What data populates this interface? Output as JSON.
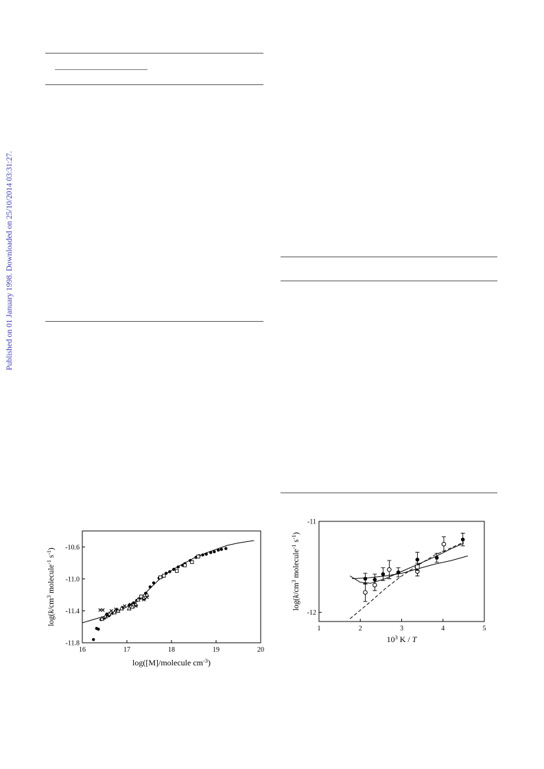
{
  "watermark": {
    "text": "Published on 01 January 1998. Downloaded on 25/10/2014 03:31:27.",
    "color": "#3b3bbf"
  },
  "chart_data": [
    {
      "type": "scatter",
      "title": "",
      "xlabel": "log([M]/molecule cm⁻³)",
      "ylabel": "log(k/cm³ molecule⁻¹ s⁻¹)",
      "xlim": [
        16,
        20
      ],
      "ylim": [
        -11.8,
        -10.4
      ],
      "xticks": [
        16,
        17,
        18,
        19,
        20
      ],
      "yticks": [
        -11.8,
        -11.4,
        -11.0,
        -10.6
      ],
      "ytick_labels": [
        "-11.8",
        "-11.4",
        "-11.0",
        "-10.6"
      ],
      "grid": false,
      "series": [
        {
          "marker": "filled-circle",
          "points": [
            [
              16.25,
              -11.76
            ],
            [
              16.32,
              -11.62
            ],
            [
              16.36,
              -11.63
            ],
            [
              16.42,
              -11.51
            ],
            [
              16.5,
              -11.49
            ],
            [
              16.55,
              -11.44
            ],
            [
              16.6,
              -11.46
            ],
            [
              16.68,
              -11.43
            ],
            [
              16.78,
              -11.39
            ],
            [
              16.9,
              -11.36
            ],
            [
              17.05,
              -11.33
            ],
            [
              17.15,
              -11.3
            ],
            [
              17.22,
              -11.27
            ],
            [
              17.3,
              -11.24
            ],
            [
              17.42,
              -11.18
            ],
            [
              17.52,
              -11.1
            ],
            [
              17.6,
              -11.05
            ],
            [
              17.72,
              -10.99
            ],
            [
              17.8,
              -10.97
            ],
            [
              17.88,
              -10.93
            ],
            [
              17.96,
              -10.91
            ],
            [
              18.05,
              -10.88
            ],
            [
              18.15,
              -10.85
            ],
            [
              18.25,
              -10.83
            ],
            [
              18.3,
              -10.81
            ],
            [
              18.42,
              -10.77
            ],
            [
              18.55,
              -10.73
            ],
            [
              18.62,
              -10.71
            ],
            [
              18.7,
              -10.7
            ],
            [
              18.78,
              -10.69
            ],
            [
              18.88,
              -10.67
            ],
            [
              18.96,
              -10.66
            ],
            [
              19.05,
              -10.64
            ],
            [
              19.12,
              -10.63
            ],
            [
              19.22,
              -10.62
            ]
          ]
        },
        {
          "marker": "open-triangle",
          "points": [
            [
              16.44,
              -11.5
            ],
            [
              16.52,
              -11.47
            ],
            [
              16.6,
              -11.44
            ],
            [
              16.72,
              -11.42
            ],
            [
              16.8,
              -11.4
            ],
            [
              16.88,
              -11.37
            ],
            [
              17.05,
              -11.37
            ],
            [
              17.12,
              -11.35
            ],
            [
              17.2,
              -11.32
            ],
            [
              17.25,
              -11.26
            ],
            [
              17.38,
              -11.24
            ],
            [
              17.45,
              -11.2
            ]
          ]
        },
        {
          "marker": "x",
          "points": [
            [
              16.4,
              -11.39
            ],
            [
              16.46,
              -11.39
            ],
            [
              16.56,
              -11.46
            ],
            [
              16.65,
              -11.4
            ],
            [
              16.75,
              -11.38
            ],
            [
              16.95,
              -11.34
            ],
            [
              17.08,
              -11.32
            ],
            [
              17.2,
              -11.34
            ],
            [
              17.38,
              -11.26
            ],
            [
              17.45,
              -11.23
            ]
          ]
        },
        {
          "marker": "open-square",
          "points": [
            [
              17.32,
              -11.22
            ],
            [
              17.75,
              -10.98
            ],
            [
              17.83,
              -10.96
            ],
            [
              18.12,
              -10.9
            ],
            [
              18.3,
              -10.83
            ],
            [
              18.46,
              -10.79
            ],
            [
              18.6,
              -10.72
            ]
          ]
        }
      ],
      "fit_curve": [
        [
          16.0,
          -11.55
        ],
        [
          16.3,
          -11.5
        ],
        [
          16.6,
          -11.45
        ],
        [
          16.9,
          -11.38
        ],
        [
          17.1,
          -11.32
        ],
        [
          17.3,
          -11.24
        ],
        [
          17.5,
          -11.13
        ],
        [
          17.7,
          -11.02
        ],
        [
          17.9,
          -10.93
        ],
        [
          18.1,
          -10.86
        ],
        [
          18.3,
          -10.8
        ],
        [
          18.5,
          -10.74
        ],
        [
          18.75,
          -10.68
        ],
        [
          19.0,
          -10.63
        ],
        [
          19.25,
          -10.58
        ],
        [
          19.5,
          -10.55
        ],
        [
          19.85,
          -10.52
        ]
      ]
    },
    {
      "type": "scatter",
      "title": "",
      "xlabel": "10³ K / T",
      "ylabel": "log(k/cm³ molecule⁻¹ s⁻¹)",
      "xlim": [
        1,
        5
      ],
      "ylim": [
        -12.1,
        -11
      ],
      "xticks": [
        1,
        2,
        3,
        4,
        5
      ],
      "yticks": [
        -12,
        -11
      ],
      "ytick_labels": [
        "-12",
        "-11"
      ],
      "grid": false,
      "series": [
        {
          "marker": "filled-circle",
          "points": [
            [
              2.12,
              -11.63,
              0.06
            ],
            [
              2.35,
              -11.64,
              0.06
            ],
            [
              2.55,
              -11.58,
              0.07
            ],
            [
              2.92,
              -11.56,
              0.05
            ],
            [
              3.38,
              -11.42,
              0.08
            ],
            [
              3.85,
              -11.4,
              0.05
            ],
            [
              4.48,
              -11.2,
              0.07
            ]
          ]
        },
        {
          "marker": "open-circle",
          "points": [
            [
              2.12,
              -11.78,
              0.1
            ],
            [
              2.35,
              -11.7,
              0.06
            ],
            [
              2.7,
              -11.53,
              0.1
            ],
            [
              3.38,
              -11.55,
              0.05
            ],
            [
              4.02,
              -11.25,
              0.08
            ]
          ]
        },
        {
          "marker": "open-square",
          "points": [
            [
              3.38,
              -11.5,
              0.04
            ]
          ]
        }
      ],
      "lines": [
        {
          "style": "solid",
          "points": [
            [
              1.8,
              -11.63
            ],
            [
              2.2,
              -11.62
            ],
            [
              2.6,
              -11.6
            ],
            [
              3.0,
              -11.57
            ],
            [
              3.4,
              -11.52
            ],
            [
              3.8,
              -11.47
            ],
            [
              4.2,
              -11.43
            ],
            [
              4.6,
              -11.38
            ]
          ]
        },
        {
          "style": "solid",
          "points": [
            [
              1.75,
              -11.6
            ],
            [
              2.0,
              -11.67
            ],
            [
              2.25,
              -11.68
            ],
            [
              2.6,
              -11.63
            ],
            [
              3.0,
              -11.55
            ],
            [
              3.4,
              -11.47
            ],
            [
              3.8,
              -11.39
            ],
            [
              4.2,
              -11.3
            ],
            [
              4.5,
              -11.24
            ]
          ]
        },
        {
          "style": "dashed",
          "points": [
            [
              1.75,
              -12.07
            ],
            [
              2.2,
              -11.9
            ],
            [
              2.6,
              -11.74
            ],
            [
              3.0,
              -11.6
            ],
            [
              3.4,
              -11.48
            ],
            [
              3.8,
              -11.37
            ],
            [
              4.2,
              -11.29
            ],
            [
              4.5,
              -11.23
            ]
          ]
        }
      ]
    }
  ]
}
